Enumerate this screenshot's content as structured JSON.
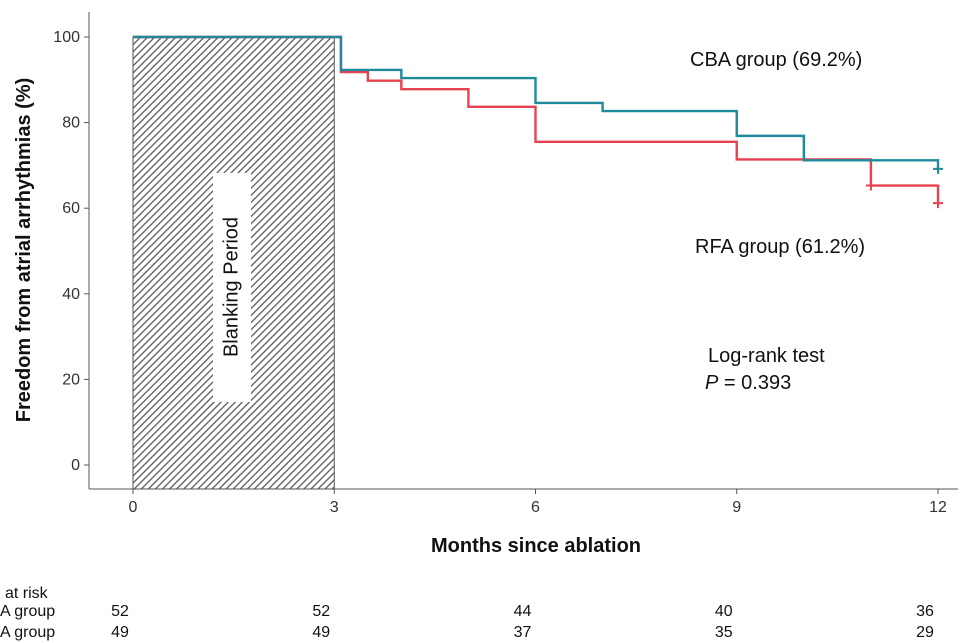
{
  "chart_data": {
    "type": "line",
    "title": "",
    "xlabel": "Months since ablation",
    "ylabel": "Freedom from atrial arrhythmias (%)",
    "xlim": [
      0,
      12
    ],
    "ylim": [
      0,
      100
    ],
    "xticks": [
      0,
      3,
      6,
      9,
      12
    ],
    "yticks": [
      0,
      20,
      40,
      60,
      80,
      100
    ],
    "grid": false,
    "series": [
      {
        "name": "CBA group",
        "color": "#1f8a9a",
        "step": true,
        "x": [
          0,
          3,
          3.1,
          4,
          6,
          7,
          9,
          10,
          11,
          12
        ],
        "y": [
          100,
          100,
          92.3,
          90.4,
          84.6,
          82.7,
          76.9,
          71.2,
          71.2,
          69.2
        ]
      },
      {
        "name": "RFA group",
        "color": "#e8414f",
        "step": true,
        "x": [
          0,
          3,
          3.1,
          3.5,
          4,
          5,
          6,
          9,
          11,
          12
        ],
        "y": [
          100,
          100,
          91.8,
          89.8,
          87.8,
          83.7,
          75.5,
          71.4,
          65.3,
          61.2
        ]
      }
    ],
    "censor_marks": [
      {
        "series": "CBA group",
        "x": 12,
        "y": 69.2
      },
      {
        "series": "RFA group",
        "x": 11,
        "y": 65.3
      },
      {
        "series": "RFA group",
        "x": 12,
        "y": 61.2
      }
    ],
    "shaded_region": {
      "x_start": 0,
      "x_end": 3,
      "label": "Blanking Period",
      "pattern": "diagonal-hatch"
    },
    "annotations": {
      "cba_label": "CBA group (69.2%)",
      "rfa_label": "RFA group (61.2%)",
      "test_label": "Log-rank test",
      "p_symbol": "P",
      "p_value": " = 0.393"
    },
    "at_risk": {
      "header": "at risk",
      "rows": [
        {
          "label": "A group",
          "values": [
            "52",
            "52",
            "44",
            "40",
            "36"
          ]
        },
        {
          "label": "A group",
          "values": [
            "49",
            "49",
            "37",
            "35",
            "29"
          ]
        }
      ]
    }
  }
}
